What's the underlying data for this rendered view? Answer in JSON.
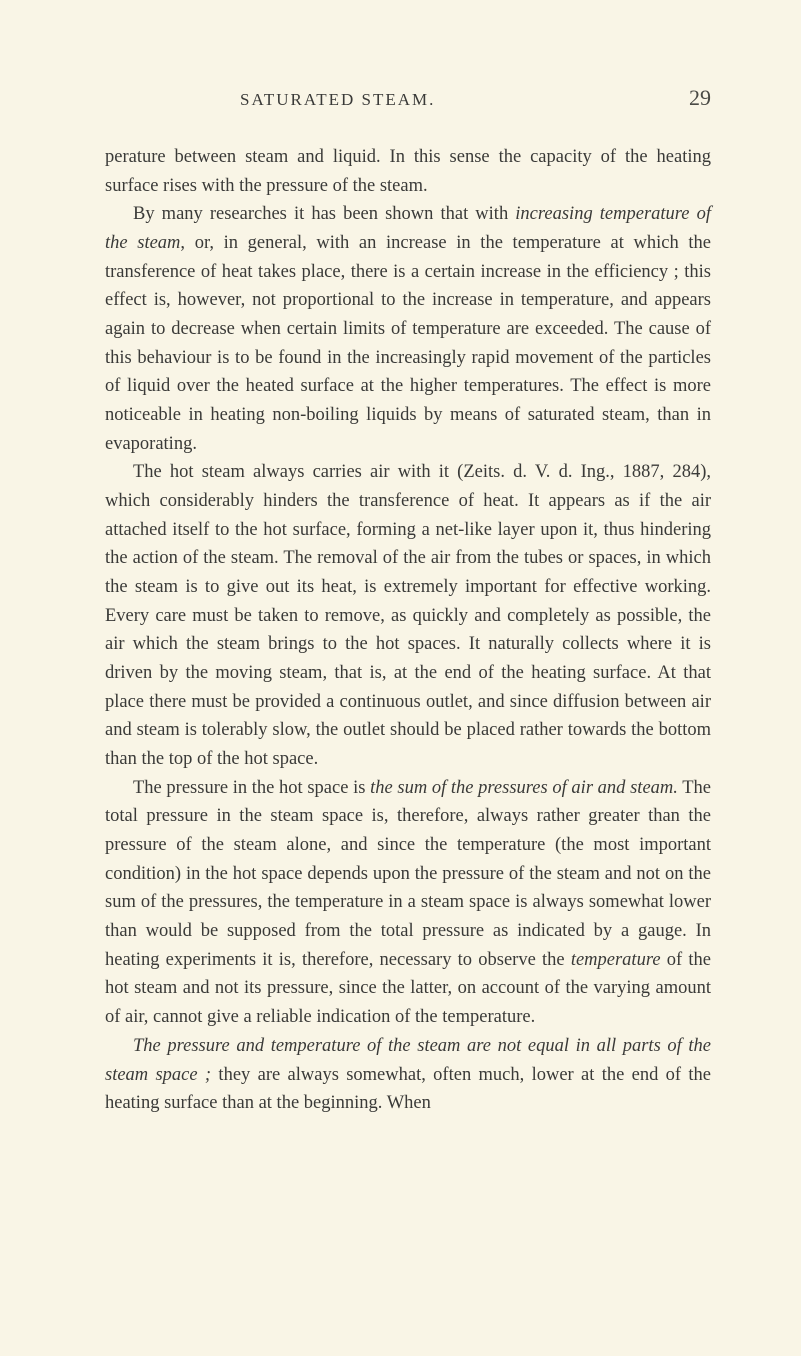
{
  "header": {
    "section_title": "SATURATED STEAM.",
    "page_number": "29"
  },
  "paragraphs": {
    "p1_part1": "perature between steam and liquid. In this sense the capacity of the heating surface rises with the pressure of the steam.",
    "p2_part1": "By many researches it has been shown that with ",
    "p2_italic1": "increasing temperature of the steam",
    "p2_part2": ", or, in general, with an increase in the temperature at which the transference of heat takes place, there is a certain increase in the efficiency ; this effect is, however, not proportional to the increase in temperature, and appears again to decrease when certain limits of temperature are exceeded. The cause of this behaviour is to be found in the increasingly rapid movement of the particles of liquid over the heated surface at the higher temperatures. The effect is more noticeable in heating non-boiling liquids by means of saturated steam, than in evaporating.",
    "p3": "The hot steam always carries air with it (Zeits. d. V. d. Ing., 1887, 284), which considerably hinders the transference of heat. It appears as if the air attached itself to the hot surface, forming a net-like layer upon it, thus hindering the action of the steam. The removal of the air from the tubes or spaces, in which the steam is to give out its heat, is extremely important for effective working. Every care must be taken to remove, as quickly and completely as possible, the air which the steam brings to the hot spaces. It naturally collects where it is driven by the moving steam, that is, at the end of the heating surface. At that place there must be provided a continuous outlet, and since diffusion between air and steam is tolerably slow, the outlet should be placed rather towards the bottom than the top of the hot space.",
    "p4_part1": "The pressure in the hot space is ",
    "p4_italic1": "the sum of the pressures of air and steam.",
    "p4_part2": " The total pressure in the steam space is, therefore, always rather greater than the pressure of the steam alone, and since the temperature (the most important condition) in the hot space depends upon the pressure of the steam and not on the sum of the pressures, the temperature in a steam space is always somewhat lower than would be supposed from the total pressure as indicated by a gauge. In heating experiments it is, therefore, necessary to observe the ",
    "p4_italic2": "temperature",
    "p4_part3": " of the hot steam and not its pressure, since the latter, on account of the varying amount of air, cannot give a reliable indication of the temperature.",
    "p5_italic1": "The pressure and temperature of the steam are not equal in all parts of the steam space ;",
    "p5_part1": " they are always somewhat, often much, lower at the end of the heating surface than at the beginning. When"
  }
}
